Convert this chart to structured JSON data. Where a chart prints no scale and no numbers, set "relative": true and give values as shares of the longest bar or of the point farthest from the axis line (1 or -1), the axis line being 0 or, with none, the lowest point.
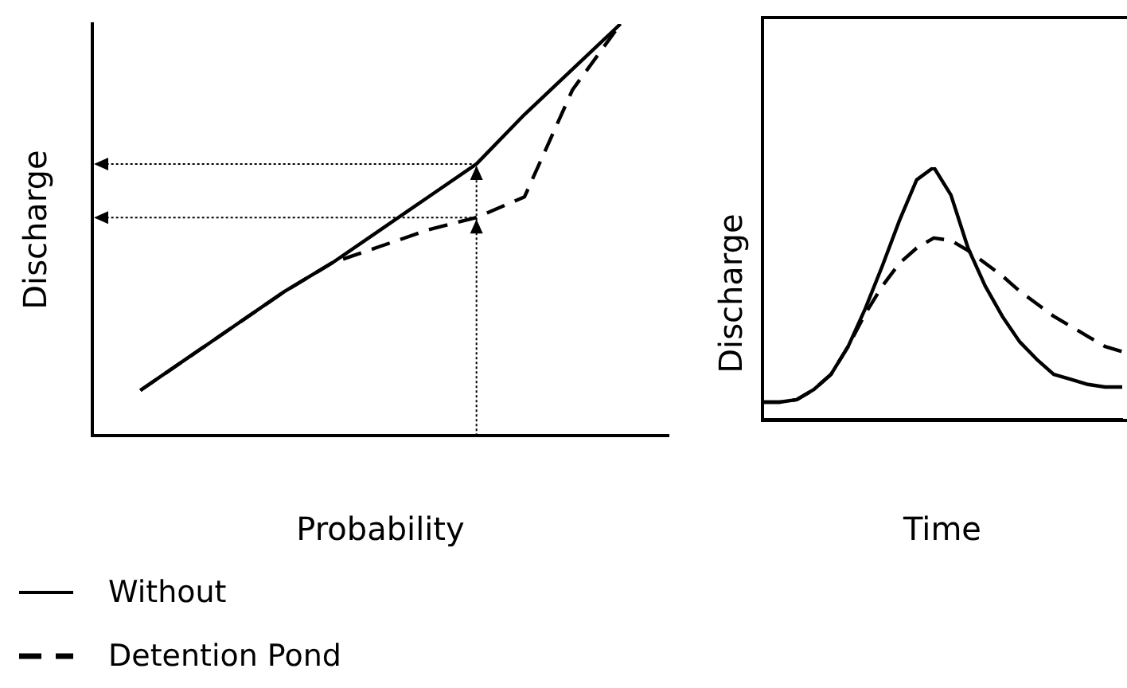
{
  "chart_data": [
    {
      "type": "line",
      "xlabel": "Probability",
      "ylabel": "Discharge",
      "relative": true,
      "legend": "bottom left",
      "grid": false,
      "marker": "none",
      "categories": [
        null,
        null,
        null,
        null,
        null,
        null,
        null,
        null,
        null,
        null,
        null,
        null,
        null
      ],
      "series": [
        {
          "name": "Without",
          "color": "#000000",
          "line_style": "solid",
          "values": [
            null,
            0.11,
            0.19,
            0.27,
            0.35,
            0.42,
            0.5,
            0.58,
            0.66,
            0.78,
            0.89,
            1.0,
            null
          ]
        },
        {
          "name": "Detention Pond",
          "color": "#000000",
          "line_style": "dashed",
          "values": [
            null,
            0.11,
            0.19,
            0.27,
            0.35,
            0.42,
            0.46,
            0.5,
            0.53,
            0.58,
            0.84,
            1.0,
            null
          ]
        }
      ]
    },
    {
      "type": "line",
      "xlabel": "Time",
      "ylabel": "Discharge",
      "relative": true,
      "grid": false,
      "marker": "none",
      "categories": [
        null,
        null,
        null,
        null,
        null,
        null,
        null,
        null,
        null,
        null,
        null,
        null,
        null,
        null,
        null,
        null,
        null,
        null,
        null,
        null,
        null,
        null
      ],
      "series": [
        {
          "color": "#000000",
          "line_style": "solid",
          "values": [
            0.07,
            0.07,
            0.08,
            0.12,
            0.18,
            0.29,
            0.44,
            0.61,
            0.79,
            0.95,
            1.0,
            0.89,
            0.68,
            0.53,
            0.41,
            0.31,
            0.24,
            0.18,
            0.16,
            0.14,
            0.13,
            0.13
          ]
        },
        {
          "color": "#000000",
          "line_style": "dashed",
          "values": [
            0.07,
            0.07,
            0.08,
            0.12,
            0.18,
            0.29,
            0.42,
            0.53,
            0.62,
            0.68,
            0.72,
            0.71,
            0.67,
            0.62,
            0.57,
            0.51,
            0.46,
            0.41,
            0.37,
            0.33,
            0.29,
            0.27
          ]
        }
      ]
    }
  ]
}
